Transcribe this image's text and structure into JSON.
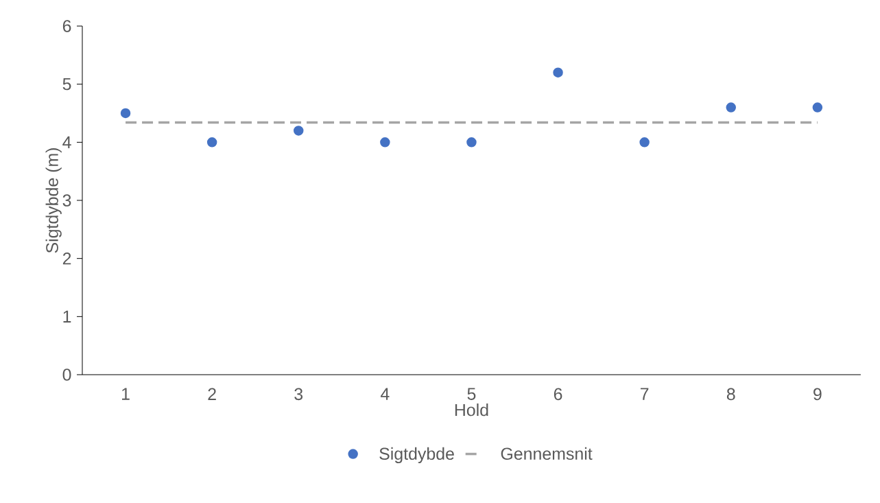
{
  "chart_data": {
    "type": "scatter",
    "xlabel": "Hold",
    "ylabel": "Sigtdybde (m)",
    "categories": [
      "1",
      "2",
      "3",
      "4",
      "5",
      "6",
      "7",
      "8",
      "9"
    ],
    "series": [
      {
        "name": "Sigtdybde",
        "color": "#4472c4",
        "marker": "circle",
        "values": [
          4.5,
          4.0,
          4.2,
          4.0,
          4.0,
          5.2,
          4.0,
          4.6,
          4.6
        ]
      },
      {
        "name": "Gennemsnit",
        "type": "line",
        "color": "#a5a5a5",
        "line_style": "dashed",
        "marker": "none",
        "values": [
          4.34,
          4.34,
          4.34,
          4.34,
          4.34,
          4.34,
          4.34,
          4.34,
          4.34
        ]
      }
    ],
    "ylim": [
      0,
      6
    ],
    "yticks": [
      0,
      1,
      2,
      3,
      4,
      5,
      6
    ],
    "grid": false,
    "legend": "bottom"
  }
}
